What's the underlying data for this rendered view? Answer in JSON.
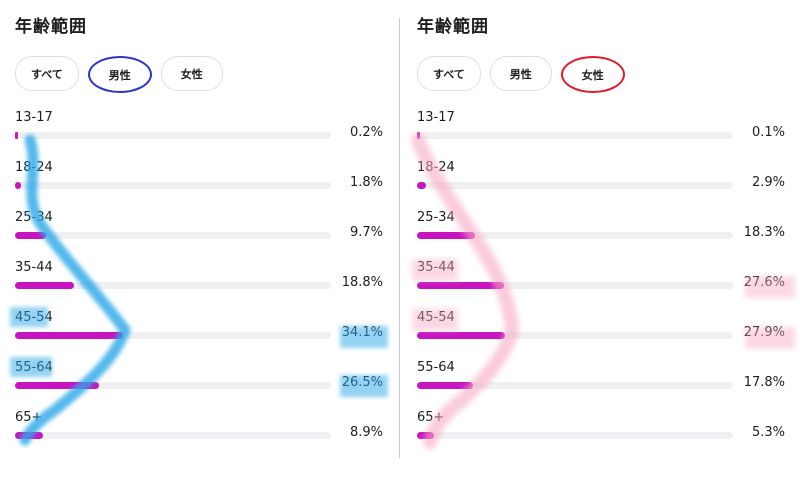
{
  "panels": [
    {
      "title": "年齢範囲",
      "filters": [
        "すべて",
        "男性",
        "女性"
      ],
      "selected_filter": "男性"
    },
    {
      "title": "年齢範囲",
      "filters": [
        "すべて",
        "男性",
        "女性"
      ],
      "selected_filter": "女性"
    }
  ],
  "colors": {
    "bar": "#c813c1",
    "track": "#f0f0f2",
    "male_curve": "#2aa7e8",
    "female_curve": "#f7a8c4",
    "male_circle": "#2d35c9",
    "female_circle": "#e21b2a"
  },
  "chart_data": [
    {
      "type": "bar",
      "title": "年齢範囲",
      "filter": "男性",
      "categories": [
        "13-17",
        "18-24",
        "25-34",
        "35-44",
        "45-54",
        "55-64",
        "65+"
      ],
      "values": [
        0.2,
        1.8,
        9.7,
        18.8,
        34.1,
        26.5,
        8.9
      ],
      "value_labels": [
        "0.2%",
        "1.8%",
        "9.7%",
        "18.8%",
        "34.1%",
        "26.5%",
        "8.9%"
      ],
      "xlim": [
        0,
        100
      ]
    },
    {
      "type": "bar",
      "title": "年齢範囲",
      "filter": "女性",
      "categories": [
        "13-17",
        "18-24",
        "25-34",
        "35-44",
        "45-54",
        "55-64",
        "65+"
      ],
      "values": [
        0.1,
        2.9,
        18.3,
        27.6,
        27.9,
        17.8,
        5.3
      ],
      "value_labels": [
        "0.1%",
        "2.9%",
        "18.3%",
        "27.6%",
        "27.9%",
        "17.8%",
        "5.3%"
      ],
      "xlim": [
        0,
        100
      ]
    }
  ]
}
